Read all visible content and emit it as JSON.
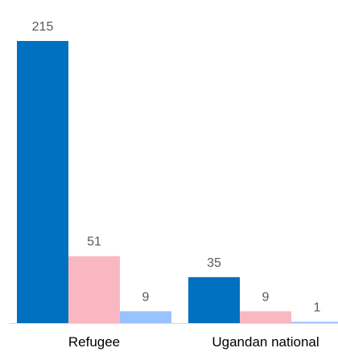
{
  "chart_data": {
    "type": "bar",
    "categories": [
      "Refugee",
      "Ugandan national"
    ],
    "series": [
      {
        "values": [
          215,
          35
        ],
        "color": "#0070c0"
      },
      {
        "values": [
          51,
          9
        ],
        "color": "#f9b8c1"
      },
      {
        "values": [
          9,
          1
        ],
        "color": "#99c2ff"
      }
    ],
    "ylim": [
      0,
      215
    ],
    "grid": false,
    "legend": "none",
    "data_labels": true
  }
}
